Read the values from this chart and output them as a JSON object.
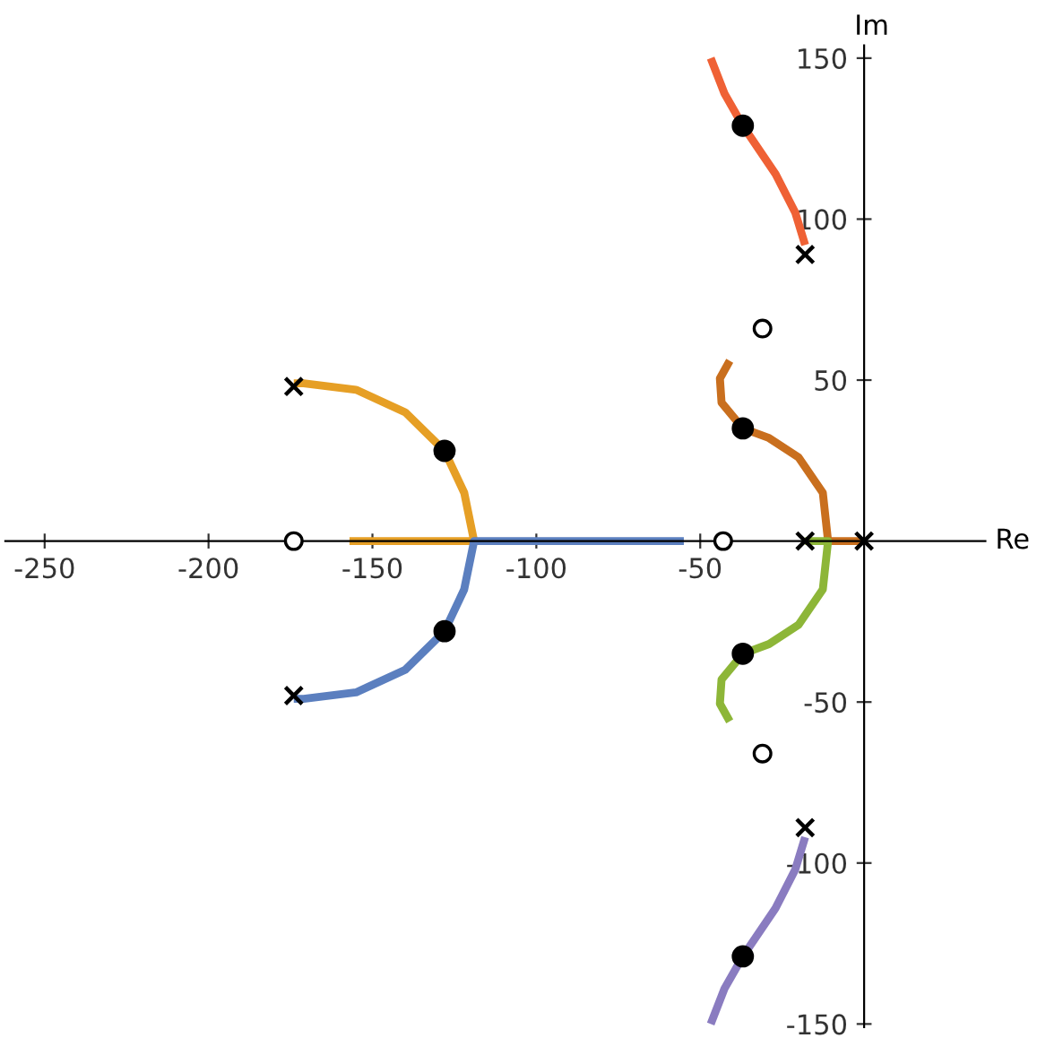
{
  "chart_data": {
    "type": "line",
    "xlabel": "Re",
    "ylabel": "Im",
    "xlim": [
      -262,
      37
    ],
    "ylim": [
      -151,
      154
    ],
    "xticks": [
      -250,
      -200,
      -150,
      -100,
      -50
    ],
    "yticks": [
      -150,
      -100,
      -50,
      50,
      100,
      150
    ],
    "grid": false,
    "legend": false,
    "marker": "none",
    "line_style": "solid",
    "series": [
      {
        "color": "#e69f25",
        "x": [
          -174,
          -171,
          -155,
          -140,
          -128,
          -122,
          -119,
          -157
        ],
        "values": [
          49,
          49,
          47,
          40,
          28,
          15,
          0,
          0
        ]
      },
      {
        "color": "#5b7fbf",
        "x": [
          -174,
          -171,
          -155,
          -140,
          -128,
          -122,
          -119,
          -55
        ],
        "values": [
          -49,
          -49,
          -47,
          -40,
          -28,
          -15,
          0,
          0
        ]
      },
      {
        "color": "#ef6135",
        "x": [
          -18,
          -21,
          -27,
          -37,
          -42.6,
          -46.8
        ],
        "values": [
          92,
          102,
          114,
          129,
          139,
          150
        ]
      },
      {
        "color": "#c96f1e",
        "x": [
          0,
          -11,
          -12.6,
          -20,
          -29,
          -37,
          -43.5,
          -44,
          -41
        ],
        "values": [
          0,
          0,
          15,
          26,
          32,
          35,
          43,
          50.5,
          56
        ]
      },
      {
        "color": "#8db638",
        "x": [
          -18,
          -11,
          -12.6,
          -20,
          -29,
          -37,
          -43.5,
          -44,
          -41
        ],
        "values": [
          0,
          0,
          -15,
          -26,
          -32,
          -35,
          -43,
          -50.5,
          -56
        ]
      },
      {
        "color": "#8a7cc0",
        "x": [
          -18,
          -21,
          -27,
          -37,
          -42.6,
          -46.8
        ],
        "values": [
          -92,
          -102,
          -114,
          -129,
          -139,
          -150
        ]
      },
      {
        "type": "scatter",
        "marker": "cross",
        "color": "#000000",
        "x": [
          -174,
          -174,
          -18,
          -18,
          -18,
          0
        ],
        "values": [
          48,
          -48,
          89,
          -89,
          0,
          0
        ]
      },
      {
        "type": "scatter",
        "marker": "circle",
        "color": "#ffffff",
        "x": [
          -174,
          -43,
          -31,
          -31
        ],
        "values": [
          0,
          0,
          66,
          -66
        ]
      },
      {
        "type": "scatter",
        "marker": "circle",
        "color": "#000000",
        "x": [
          -128,
          -128,
          -37,
          -37,
          -37,
          -37
        ],
        "values": [
          28,
          -28,
          129,
          35,
          -35,
          -129
        ]
      }
    ]
  }
}
